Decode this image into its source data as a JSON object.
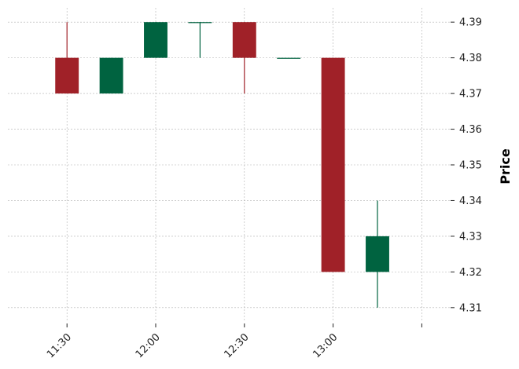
{
  "chart_data": {
    "type": "candlestick",
    "ylabel": "Price",
    "ylim": [
      4.306,
      4.394
    ],
    "y_ticks": [
      "4.31",
      "4.32",
      "4.33",
      "4.34",
      "4.35",
      "4.36",
      "4.37",
      "4.38",
      "4.39"
    ],
    "x_ticks": [
      "11:30",
      "12:00",
      "12:30",
      "13:00",
      ""
    ],
    "x_range": [
      "11:10",
      "13:40"
    ],
    "interval_minutes": 15,
    "grid": true,
    "colors": {
      "up": "#006340",
      "down": "#a02128",
      "grid": "#b0b0b0"
    },
    "candles": [
      {
        "time": "11:30",
        "open": 4.38,
        "high": 4.39,
        "low": 4.37,
        "close": 4.37
      },
      {
        "time": "11:45",
        "open": 4.37,
        "high": 4.38,
        "low": 4.37,
        "close": 4.38
      },
      {
        "time": "12:00",
        "open": 4.38,
        "high": 4.39,
        "low": 4.38,
        "close": 4.39
      },
      {
        "time": "12:15",
        "open": 4.39,
        "high": 4.39,
        "low": 4.38,
        "close": 4.39
      },
      {
        "time": "12:30",
        "open": 4.39,
        "high": 4.39,
        "low": 4.37,
        "close": 4.38
      },
      {
        "time": "12:45",
        "open": 4.38,
        "high": 4.38,
        "low": 4.38,
        "close": 4.38
      },
      {
        "time": "13:00",
        "open": 4.38,
        "high": 4.38,
        "low": 4.32,
        "close": 4.32
      },
      {
        "time": "13:15",
        "open": 4.32,
        "high": 4.34,
        "low": 4.31,
        "close": 4.33
      }
    ]
  }
}
